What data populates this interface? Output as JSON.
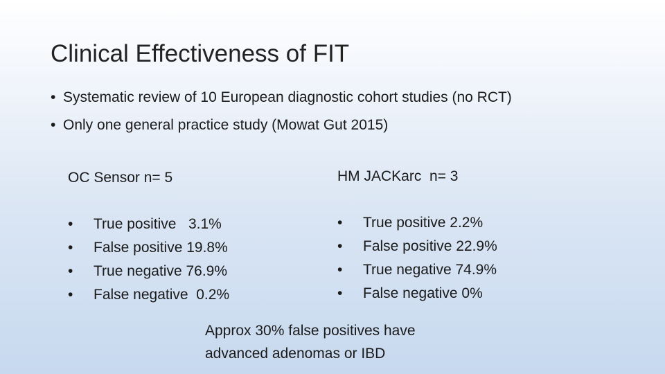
{
  "slide": {
    "title": "Clinical Effectiveness of FIT",
    "intro_bullets": [
      "Systematic review of 10 European diagnostic cohort studies (no RCT)",
      "Only one general practice study (Mowat Gut 2015)"
    ],
    "left_column": {
      "heading": "OC Sensor n= 5",
      "items": [
        "True positive   3.1%",
        "False positive 19.8%",
        "True negative 76.9%",
        "False negative  0.2%"
      ]
    },
    "right_column": {
      "heading": "HM JACKarc  n= 3",
      "items": [
        "True positive 2.2%",
        "False positive 22.9%",
        "True negative 74.9%",
        "False negative 0%"
      ]
    },
    "note_lines": [
      "Approx 30% false positives have",
      "advanced adenomas or IBD"
    ]
  }
}
